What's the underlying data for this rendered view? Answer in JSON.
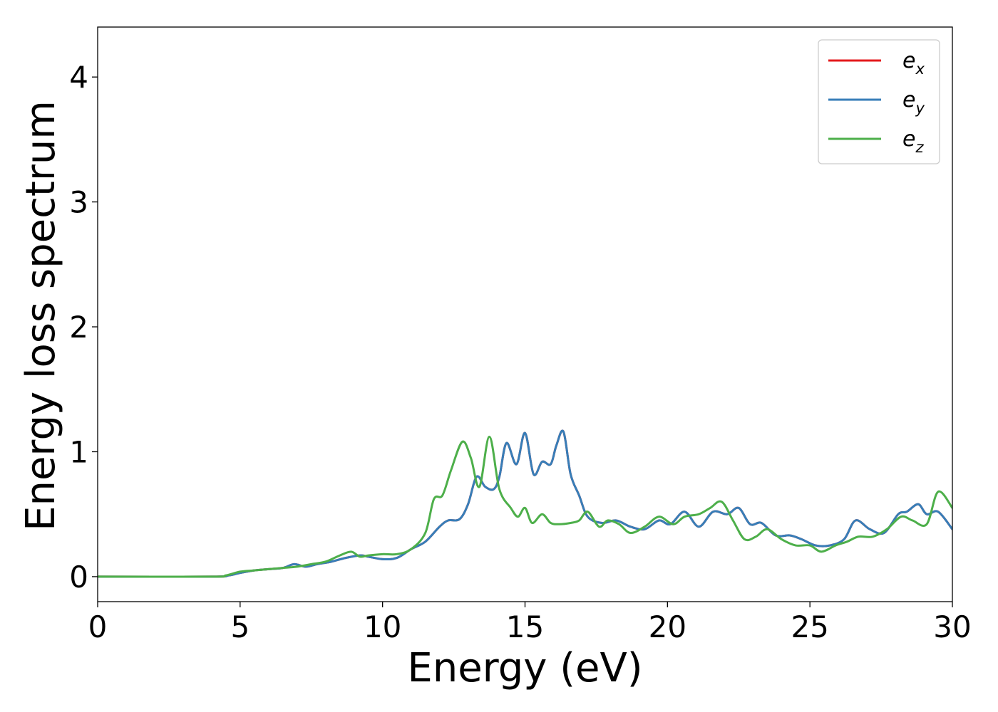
{
  "chart_data": {
    "type": "line",
    "title": "",
    "xlabel": "Energy (eV)",
    "ylabel": "Energy loss spectrum",
    "xlim": [
      0,
      30
    ],
    "ylim": [
      -0.2,
      4.4
    ],
    "xticks": [
      "0",
      "5",
      "10",
      "15",
      "20",
      "25",
      "30"
    ],
    "xtick_values": [
      0,
      5,
      10,
      15,
      20,
      25,
      30
    ],
    "yticks": [
      "0",
      "1",
      "2",
      "3",
      "4"
    ],
    "ytick_values": [
      0,
      1,
      2,
      3,
      4
    ],
    "grid": false,
    "legend_position": "top-right",
    "legend": [
      {
        "base": "e",
        "sub": "x",
        "color": "#e41a1c"
      },
      {
        "base": "e",
        "sub": "y",
        "color": "#377eb8"
      },
      {
        "base": "e",
        "sub": "z",
        "color": "#4daf4a"
      }
    ],
    "series": [
      {
        "name": "e_x",
        "color": "#e41a1c",
        "x": [
          0,
          4,
          4.6,
          5,
          5.5,
          6,
          6.5,
          6.9,
          7.3,
          7.7,
          8.2,
          8.7,
          9.2,
          9.5,
          10,
          10.5,
          11,
          11.5,
          12,
          12.3,
          12.7,
          13,
          13.3,
          13.6,
          13.9,
          14.1,
          14.35,
          14.7,
          15,
          15.3,
          15.6,
          15.9,
          16.1,
          16.35,
          16.6,
          16.9,
          17.2,
          17.7,
          18.2,
          18.7,
          19.2,
          19.7,
          20.1,
          20.6,
          21.1,
          21.6,
          22.1,
          22.5,
          22.9,
          23.3,
          23.8,
          24.3,
          24.7,
          25.2,
          25.7,
          26.2,
          26.6,
          27.1,
          27.6,
          28.1,
          28.4,
          28.8,
          29.1,
          29.5,
          30
        ],
        "y": [
          0,
          0,
          0.01,
          0.03,
          0.05,
          0.06,
          0.07,
          0.1,
          0.08,
          0.1,
          0.12,
          0.15,
          0.17,
          0.16,
          0.14,
          0.15,
          0.22,
          0.28,
          0.4,
          0.45,
          0.46,
          0.58,
          0.8,
          0.72,
          0.7,
          0.8,
          1.07,
          0.9,
          1.15,
          0.82,
          0.92,
          0.9,
          1.05,
          1.16,
          0.82,
          0.65,
          0.48,
          0.43,
          0.45,
          0.4,
          0.38,
          0.45,
          0.42,
          0.52,
          0.4,
          0.52,
          0.5,
          0.55,
          0.42,
          0.43,
          0.33,
          0.33,
          0.3,
          0.25,
          0.25,
          0.3,
          0.45,
          0.38,
          0.35,
          0.5,
          0.52,
          0.58,
          0.5,
          0.52,
          0.38
        ]
      },
      {
        "name": "e_y",
        "color": "#377eb8",
        "x": [
          0,
          4,
          4.6,
          5,
          5.5,
          6,
          6.5,
          6.9,
          7.3,
          7.7,
          8.2,
          8.7,
          9.2,
          9.5,
          10,
          10.5,
          11,
          11.5,
          12,
          12.3,
          12.7,
          13,
          13.3,
          13.6,
          13.9,
          14.1,
          14.35,
          14.7,
          15,
          15.3,
          15.6,
          15.9,
          16.1,
          16.35,
          16.6,
          16.9,
          17.2,
          17.7,
          18.2,
          18.7,
          19.2,
          19.7,
          20.1,
          20.6,
          21.1,
          21.6,
          22.1,
          22.5,
          22.9,
          23.3,
          23.8,
          24.3,
          24.7,
          25.2,
          25.7,
          26.2,
          26.6,
          27.1,
          27.6,
          28.1,
          28.4,
          28.8,
          29.1,
          29.5,
          30
        ],
        "y": [
          0,
          0,
          0.01,
          0.03,
          0.05,
          0.06,
          0.07,
          0.1,
          0.08,
          0.1,
          0.12,
          0.15,
          0.17,
          0.16,
          0.14,
          0.15,
          0.22,
          0.28,
          0.4,
          0.45,
          0.46,
          0.58,
          0.8,
          0.72,
          0.7,
          0.8,
          1.07,
          0.9,
          1.15,
          0.82,
          0.92,
          0.9,
          1.05,
          1.16,
          0.82,
          0.65,
          0.48,
          0.43,
          0.45,
          0.4,
          0.38,
          0.45,
          0.42,
          0.52,
          0.4,
          0.52,
          0.5,
          0.55,
          0.42,
          0.43,
          0.33,
          0.33,
          0.3,
          0.25,
          0.25,
          0.3,
          0.45,
          0.38,
          0.35,
          0.5,
          0.52,
          0.58,
          0.5,
          0.52,
          0.38
        ]
      },
      {
        "name": "e_z",
        "color": "#4daf4a",
        "x": [
          0,
          4,
          4.5,
          5,
          5.5,
          6,
          6.5,
          7,
          7.5,
          8,
          8.5,
          8.9,
          9.2,
          9.5,
          10,
          10.5,
          11,
          11.5,
          11.8,
          12.1,
          12.4,
          12.8,
          13.1,
          13.4,
          13.75,
          14.1,
          14.5,
          14.75,
          15,
          15.25,
          15.6,
          15.9,
          16.2,
          16.6,
          16.9,
          17.2,
          17.6,
          17.9,
          18.3,
          18.7,
          19.2,
          19.7,
          20.2,
          20.6,
          21.1,
          21.5,
          21.9,
          22.3,
          22.7,
          23.1,
          23.5,
          24,
          24.5,
          25,
          25.4,
          25.9,
          26.3,
          26.7,
          27.2,
          27.7,
          28.2,
          28.6,
          29.1,
          29.5,
          30
        ],
        "y": [
          0,
          0,
          0.01,
          0.04,
          0.05,
          0.06,
          0.07,
          0.08,
          0.1,
          0.12,
          0.17,
          0.2,
          0.16,
          0.17,
          0.18,
          0.18,
          0.22,
          0.35,
          0.62,
          0.65,
          0.85,
          1.08,
          0.95,
          0.72,
          1.12,
          0.7,
          0.55,
          0.48,
          0.55,
          0.43,
          0.5,
          0.43,
          0.42,
          0.43,
          0.45,
          0.52,
          0.4,
          0.45,
          0.42,
          0.35,
          0.4,
          0.48,
          0.42,
          0.48,
          0.5,
          0.55,
          0.6,
          0.45,
          0.3,
          0.32,
          0.38,
          0.3,
          0.25,
          0.25,
          0.2,
          0.25,
          0.28,
          0.32,
          0.32,
          0.38,
          0.48,
          0.45,
          0.42,
          0.68,
          0.55
        ]
      }
    ]
  }
}
